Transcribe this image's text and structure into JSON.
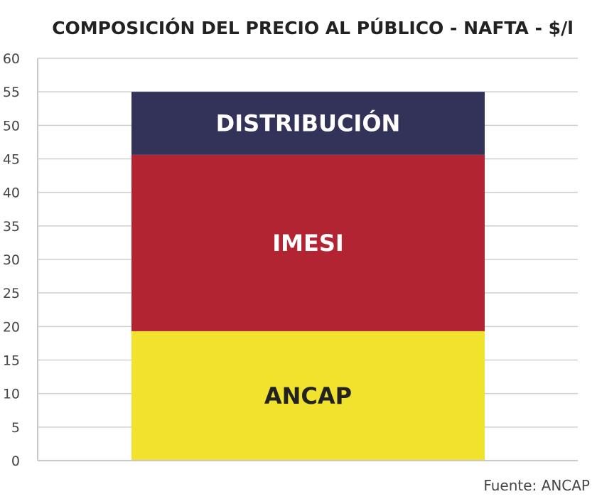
{
  "chart_data": {
    "type": "bar",
    "stacked": true,
    "title": "COMPOSICIÓN DEL PRECIO AL PÚBLICO - NAFTA - $/l",
    "xlabel": "",
    "ylabel": "",
    "ylim": [
      0,
      60
    ],
    "yticks": [
      "0",
      "5",
      "10",
      "15",
      "20",
      "25",
      "30",
      "35",
      "40",
      "45",
      "50",
      "55",
      "60"
    ],
    "grid": true,
    "categories": [
      "Nafta"
    ],
    "series": [
      {
        "name": "ANCAP",
        "values": [
          19.3
        ],
        "color": "#f1e22e",
        "label_color": "#222222"
      },
      {
        "name": "IMESI",
        "values": [
          26.3
        ],
        "color": "#b32432",
        "label_color": "#ffffff"
      },
      {
        "name": "DISTRIBUCIÓN",
        "values": [
          9.4
        ],
        "color": "#33335a",
        "label_color": "#ffffff"
      }
    ],
    "source": "Fuente: ANCAP"
  }
}
